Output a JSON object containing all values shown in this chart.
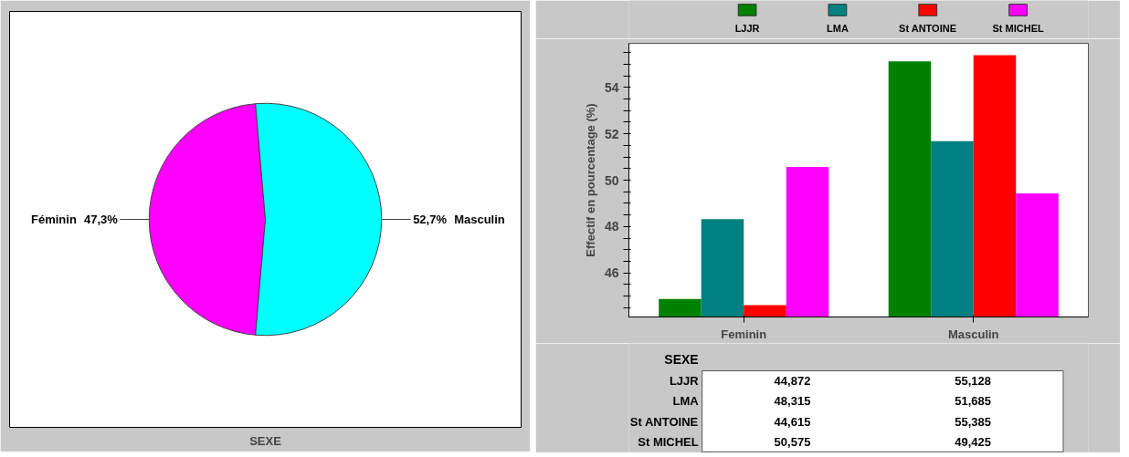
{
  "chart_data": [
    {
      "type": "pie",
      "xlabel": "SEXE",
      "categories": [
        "Féminin",
        "Masculin"
      ],
      "values": [
        47.3,
        52.7
      ],
      "colors": [
        "#ff00ff",
        "#00ffff"
      ],
      "value_labels": [
        "47,3%",
        "52,7%"
      ]
    },
    {
      "type": "bar",
      "ylabel": "Effectif en pourcentage (%)",
      "xlabel": "SEXE",
      "categories": [
        "Feminin",
        "Masculin"
      ],
      "legend": "top",
      "grid": false,
      "ylim": [
        44.1,
        55.9
      ],
      "yticks": [
        {
          "value": 44.5,
          "label": null
        },
        {
          "value": 45,
          "label": null
        },
        {
          "value": 45.5,
          "label": null
        },
        46,
        {
          "value": 46.5,
          "label": null
        },
        {
          "value": 47,
          "label": null
        },
        {
          "value": 47.5,
          "label": null
        },
        48,
        {
          "value": 48.5,
          "label": null
        },
        {
          "value": 49,
          "label": null
        },
        {
          "value": 49.5,
          "label": null
        },
        50,
        {
          "value": 50.5,
          "label": null
        },
        {
          "value": 51,
          "label": null
        },
        {
          "value": 51.5,
          "label": null
        },
        52,
        {
          "value": 52.5,
          "label": null
        },
        {
          "value": 53,
          "label": null
        },
        {
          "value": 53.5,
          "label": null
        },
        54,
        {
          "value": 54.5,
          "label": null
        },
        {
          "value": 55,
          "label": null
        },
        {
          "value": 55.5,
          "label": null
        }
      ],
      "series": [
        {
          "name": "LJJR",
          "color": "#008000",
          "values": [
            44.872,
            55.128
          ]
        },
        {
          "name": "LMA",
          "color": "#008080",
          "values": [
            48.315,
            51.685
          ]
        },
        {
          "name": "St ANTOINE",
          "color": "#ff0000",
          "values": [
            44.615,
            55.385
          ]
        },
        {
          "name": "St MICHEL",
          "color": "#ff00ff",
          "values": [
            50.575,
            49.425
          ]
        }
      ],
      "annotations": [
        "44,872",
        "55,128",
        "48,315",
        "51,685",
        "44,615",
        "55,385",
        "50,575",
        "49,425"
      ]
    }
  ]
}
